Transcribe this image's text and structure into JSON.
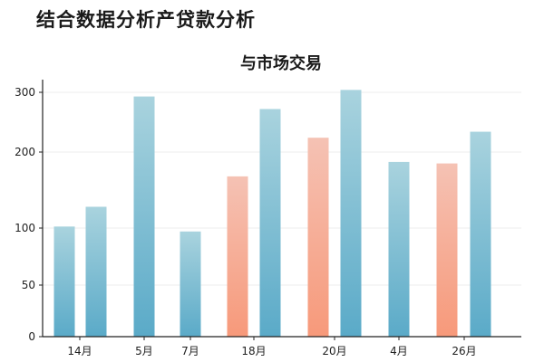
{
  "header": {
    "title": "结合数据分析产贷款分析"
  },
  "chart_data": {
    "type": "bar",
    "title": "与市场交易",
    "xlabel": "",
    "ylabel": "",
    "yticks": [
      0,
      50,
      100,
      200,
      300
    ],
    "ylim": [
      0,
      300
    ],
    "grid": true,
    "legend": "none",
    "categories": [
      "14月",
      "5月",
      "7月",
      "18月",
      "20月",
      "4月",
      "26月"
    ],
    "bars": [
      {
        "category": "14月",
        "value": 102,
        "color": "blue"
      },
      {
        "category": "14月",
        "value": 128,
        "color": "blue"
      },
      {
        "category": "5月",
        "value": 293,
        "color": "blue"
      },
      {
        "category": "7月",
        "value": 97,
        "color": "blue"
      },
      {
        "category": "18月",
        "value": 168,
        "color": "salmon"
      },
      {
        "category": "18月",
        "value": 272,
        "color": "blue"
      },
      {
        "category": "20月",
        "value": 224,
        "color": "salmon"
      },
      {
        "category": "20月",
        "value": 304,
        "color": "blue"
      },
      {
        "category": "4月",
        "value": 187,
        "color": "blue"
      },
      {
        "category": "26月",
        "value": 185,
        "color": "salmon"
      },
      {
        "category": "26月",
        "value": 234,
        "color": "blue"
      }
    ],
    "colors": {
      "blue_top": "#a9d3de",
      "blue_bottom": "#5aaac8",
      "salmon_top": "#f5c2b4",
      "salmon_bottom": "#f7997a",
      "axis": "#222222",
      "grid": "#eeeeee"
    }
  }
}
